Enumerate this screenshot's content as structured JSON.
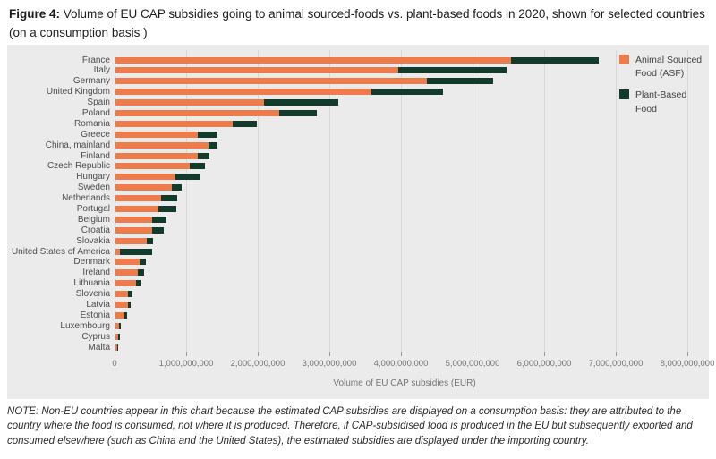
{
  "figure": {
    "title_prefix": "Figure 4:",
    "title_rest": " Volume of EU CAP subsidies going to animal sourced-foods vs. plant-based foods in 2020, shown for selected countries (on a consumption basis )"
  },
  "note": "NOTE: Non-EU countries appear in this chart because the estimated CAP subsidies are displayed on a consumption basis: they are attributed to the country where the food is consumed, not where it is produced. Therefore, if CAP-subsidised food is produced in the EU but subsequently exported and consumed elsewhere (such as China and the United States), the estimated subsidies are displayed under the importing country.",
  "colors": {
    "panel_background": "#ebebeb",
    "gridline": "#d8d8d8",
    "zeroline": "#9b9b9b",
    "asf_orange": "#ee7c4a",
    "pbf_green": "#123b2c"
  },
  "chart_data": {
    "type": "bar",
    "orientation": "horizontal",
    "stacked": true,
    "grid": true,
    "legend_position": "top-right",
    "title": "Volume of EU CAP subsidies going to animal sourced-foods vs. plant-based foods in 2020",
    "xlabel": "Volume of EU CAP subsidies (EUR)",
    "xlim": [
      0,
      8000000000
    ],
    "xticks": [
      0,
      1000000000,
      2000000000,
      3000000000,
      4000000000,
      5000000000,
      6000000000,
      7000000000,
      8000000000
    ],
    "xtick_labels": [
      "0",
      "1,000,000,000",
      "2,000,000,000",
      "3,000,000,000",
      "4,000,000,000",
      "5,000,000,000",
      "6,000,000,000",
      "7,000,000,000",
      "8,000,000,000"
    ],
    "categories": [
      "France",
      "Italy",
      "Germany",
      "United Kingdom",
      "Spain",
      "Poland",
      "Romania",
      "Greece",
      "China, mainland",
      "Finland",
      "Czech Republic",
      "Hungary",
      "Sweden",
      "Netherlands",
      "Portugal",
      "Belgium",
      "Croatia",
      "Slovakia",
      "United States of America",
      "Denmark",
      "Ireland",
      "Lithuania",
      "Slovenia",
      "Latvia",
      "Estonia",
      "Luxembourg",
      "Cyprus",
      "Malta"
    ],
    "series": [
      {
        "name": "Animal Sourced Food (ASF)",
        "color": "#ee7c4a",
        "values": [
          5530000000,
          3950000000,
          4350000000,
          3580000000,
          2080000000,
          2290000000,
          1640000000,
          1150000000,
          1300000000,
          1150000000,
          1040000000,
          840000000,
          790000000,
          640000000,
          600000000,
          510000000,
          510000000,
          440000000,
          60000000,
          340000000,
          310000000,
          290000000,
          170000000,
          175000000,
          125000000,
          50000000,
          40000000,
          20000000
        ]
      },
      {
        "name": "Plant-Based Food",
        "color": "#123b2c",
        "values": [
          1220000000,
          1510000000,
          930000000,
          990000000,
          1030000000,
          520000000,
          330000000,
          280000000,
          120000000,
          160000000,
          210000000,
          350000000,
          140000000,
          220000000,
          250000000,
          200000000,
          170000000,
          90000000,
          450000000,
          80000000,
          90000000,
          60000000,
          70000000,
          40000000,
          40000000,
          25000000,
          25000000,
          5000000
        ]
      }
    ]
  }
}
